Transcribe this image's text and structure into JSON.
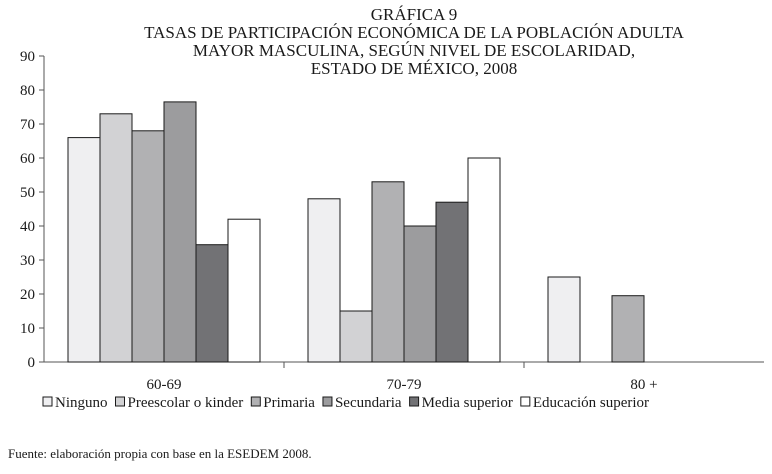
{
  "chart_data": {
    "type": "bar",
    "title_lines": [
      "GRÁFICA 9",
      "TASAS DE PARTICIPACIÓN ECONÓMICA DE LA POBLACIÓN ADULTA",
      "MAYOR MASCULINA, SEGÚN NIVEL DE ESCOLARIDAD,",
      "ESTADO DE MÉXICO, 2008"
    ],
    "categories": [
      "60-69",
      "70-79",
      "80 +"
    ],
    "series": [
      {
        "name": "Ninguno",
        "values": [
          66,
          48,
          25
        ]
      },
      {
        "name": "Preescolar o kinder",
        "values": [
          73,
          15,
          null
        ]
      },
      {
        "name": "Primaria",
        "values": [
          68,
          53,
          19.5
        ]
      },
      {
        "name": "Secundaria",
        "values": [
          76.5,
          40,
          null
        ]
      },
      {
        "name": "Media superior",
        "values": [
          34.5,
          47,
          null
        ]
      },
      {
        "name": "Educación superior",
        "values": [
          42,
          60,
          null
        ]
      }
    ],
    "y_ticks": [
      0,
      10,
      20,
      30,
      40,
      50,
      60,
      70,
      80,
      90
    ],
    "ylim": [
      0,
      90
    ],
    "xlabel": "",
    "ylabel": "",
    "grid": false,
    "legend_position": "bottom",
    "colors": [
      "#efeff1",
      "#d2d2d4",
      "#b1b1b3",
      "#9c9c9e",
      "#727275",
      "#ffffff"
    ]
  },
  "source_note": "Fuente: elaboración propia con base en la ESEDEM 2008."
}
